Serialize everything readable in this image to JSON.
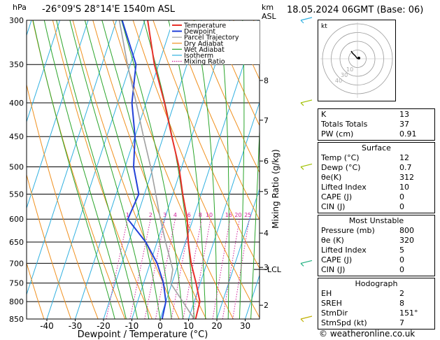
{
  "header": {
    "hpa_label": "hPa",
    "location": "-26°09'S  28°14'E  1540m  ASL",
    "km_label": "km",
    "asl_label": "ASL",
    "datetime": "18.05.2024  06GMT  (Base: 06)"
  },
  "footer": {
    "copyright": "© weatheronline.co.uk"
  },
  "colors": {
    "temperature": "#e8302a",
    "dewpoint": "#2341d8",
    "parcel": "#a0a0a0",
    "dry_adiabat": "#f0901e",
    "wet_adiabat": "#2aa52a",
    "isotherm": "#30b0e0",
    "mixing_ratio": "#d0209a"
  },
  "chart_data": {
    "type": "skew-t",
    "xlabel": "Dewpoint / Temperature (°C)",
    "ylabel_right": "Mixing Ratio (g/kg)",
    "pressure_levels": [
      300,
      350,
      400,
      450,
      500,
      550,
      600,
      650,
      700,
      750,
      800,
      850
    ],
    "pressure_labels": [
      "300",
      "350",
      "400",
      "450",
      "500",
      "550",
      "600",
      "650",
      "700",
      "750",
      "800",
      "850"
    ],
    "temp_ticks": [
      -40,
      -30,
      -20,
      -10,
      0,
      10,
      20,
      30
    ],
    "temp_tick_labels": [
      "-40",
      "-30",
      "-20",
      "-10",
      "0",
      "10",
      "20",
      "30"
    ],
    "km_ticks": [
      {
        "label": "2",
        "p": 810
      },
      {
        "label": "3",
        "p": 710
      },
      {
        "label": "4",
        "p": 630
      },
      {
        "label": "5",
        "p": 545
      },
      {
        "label": "6",
        "p": 490
      },
      {
        "label": "7",
        "p": 425
      },
      {
        "label": "8",
        "p": 370
      }
    ],
    "lcl": {
      "label": "LCL",
      "p": 715
    },
    "mixing_ratio_labels": [
      "1",
      "2",
      "3",
      "4",
      "6",
      "8",
      "10",
      "16",
      "20",
      "25"
    ],
    "mixing_ratio_values": [
      1,
      2,
      3,
      4,
      6,
      8,
      10,
      16,
      20,
      25
    ],
    "legend": [
      "Temperature",
      "Dewpoint",
      "Parcel Trajectory",
      "Dry Adiabat",
      "Wet Adiabat",
      "Isotherm",
      "Mixing Ratio"
    ],
    "series": [
      {
        "name": "Temperature",
        "points": [
          [
            850,
            12.5
          ],
          [
            800,
            12
          ],
          [
            750,
            8.5
          ],
          [
            700,
            4.5
          ],
          [
            650,
            1
          ],
          [
            600,
            -2
          ],
          [
            550,
            -6.5
          ],
          [
            500,
            -11
          ],
          [
            450,
            -17
          ],
          [
            400,
            -23.5
          ],
          [
            350,
            -31.5
          ],
          [
            300,
            -39
          ]
        ]
      },
      {
        "name": "Dewpoint",
        "points": [
          [
            850,
            0.7
          ],
          [
            800,
            0
          ],
          [
            750,
            -3
          ],
          [
            700,
            -7.5
          ],
          [
            650,
            -14
          ],
          [
            600,
            -23
          ],
          [
            550,
            -22
          ],
          [
            500,
            -27
          ],
          [
            450,
            -30
          ],
          [
            400,
            -35
          ],
          [
            350,
            -38
          ],
          [
            300,
            -48
          ]
        ]
      },
      {
        "name": "Parcel Trajectory",
        "points": [
          [
            850,
            12
          ],
          [
            750,
            -0.5
          ],
          [
            715,
            -1.3
          ],
          [
            650,
            -7
          ],
          [
            600,
            -11.5
          ],
          [
            550,
            -16
          ],
          [
            500,
            -21
          ],
          [
            450,
            -27
          ],
          [
            400,
            -33.5
          ],
          [
            350,
            -41
          ],
          [
            300,
            -49
          ]
        ]
      }
    ],
    "hodograph": {
      "label": "kt",
      "ring_labels": [
        "10",
        "30",
        "40"
      ]
    }
  },
  "indices": {
    "basic": [
      {
        "label": "K",
        "value": "13"
      },
      {
        "label": "Totals Totals",
        "value": "37"
      },
      {
        "label": "PW (cm)",
        "value": "0.91"
      }
    ],
    "surface": {
      "title": "Surface",
      "rows": [
        {
          "label": "Temp (°C)",
          "value": "12"
        },
        {
          "label": "Dewp (°C)",
          "value": "0.7"
        },
        {
          "label": "θe(K)",
          "value": "312"
        },
        {
          "label": "Lifted Index",
          "value": "10"
        },
        {
          "label": "CAPE (J)",
          "value": "0"
        },
        {
          "label": "CIN (J)",
          "value": "0"
        }
      ]
    },
    "most_unstable": {
      "title": "Most Unstable",
      "rows": [
        {
          "label": "Pressure (mb)",
          "value": "800"
        },
        {
          "label": "θe (K)",
          "value": "320"
        },
        {
          "label": "Lifted Index",
          "value": "5"
        },
        {
          "label": "CAPE (J)",
          "value": "0"
        },
        {
          "label": "CIN (J)",
          "value": "0"
        }
      ]
    },
    "hodograph": {
      "title": "Hodograph",
      "rows": [
        {
          "label": "EH",
          "value": "2"
        },
        {
          "label": "SREH",
          "value": "8"
        },
        {
          "label": "StmDir",
          "value": "151°"
        },
        {
          "label": "StmSpd (kt)",
          "value": "7"
        }
      ]
    }
  }
}
